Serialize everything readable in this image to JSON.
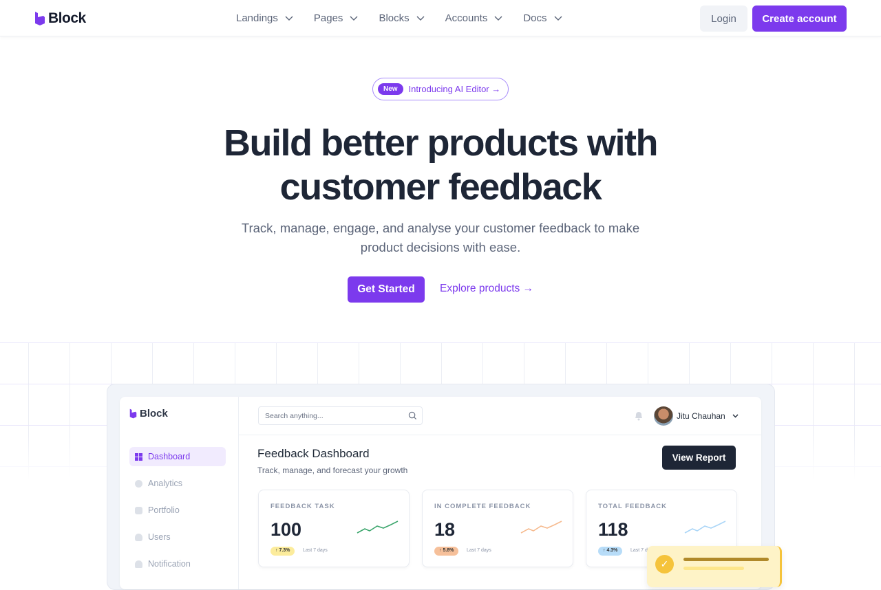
{
  "nav": {
    "brand": "Block",
    "menu": [
      "Landings",
      "Pages",
      "Blocks",
      "Accounts",
      "Docs"
    ],
    "login": "Login",
    "create_account": "Create account",
    "accent": "#7c3aed"
  },
  "hero": {
    "badge": "New",
    "announcement": "Introducing AI Editor →",
    "title_line1": "Build better products with",
    "title_line2": "customer feedback",
    "subtitle_line1": "Track, manage, engage, and analyse your customer feedback to make",
    "subtitle_line2": "product decisions with ease.",
    "primary_cta": "Get Started",
    "secondary_cta": "Explore products →"
  },
  "dashboard": {
    "brand": "Block",
    "sidebar": [
      {
        "label": "Dashboard",
        "icon": "grid-icon",
        "active": true
      },
      {
        "label": "Analytics",
        "icon": "pie-icon"
      },
      {
        "label": "Portfolio",
        "icon": "folder-icon"
      },
      {
        "label": "Users",
        "icon": "user-icon"
      },
      {
        "label": "Notification",
        "icon": "bell-icon"
      }
    ],
    "search_placeholder": "Search anything...",
    "user": "Jitu Chauhan",
    "title": "Feedback Dashboard",
    "subtitle": "Track, manage, and forecast your growth",
    "view_report": "View Report",
    "cards": [
      {
        "label": "FEEDBACK TASK",
        "value": "100",
        "change": "7.3%",
        "note": "Last 7 days",
        "color": "#3aa56b",
        "badge_bg": "#fcec9c"
      },
      {
        "label": "IN COMPLETE FEEDBACK",
        "value": "18",
        "change": "5.8%",
        "note": "Last 7 days",
        "color": "#f6b98d",
        "badge_bg": "#f6c09a"
      },
      {
        "label": "TOTAL FEEDBACK",
        "value": "118",
        "change": "4.3%",
        "note": "Last 7 days",
        "color": "#a9d5f7",
        "badge_bg": "#b7dcf8"
      }
    ]
  }
}
